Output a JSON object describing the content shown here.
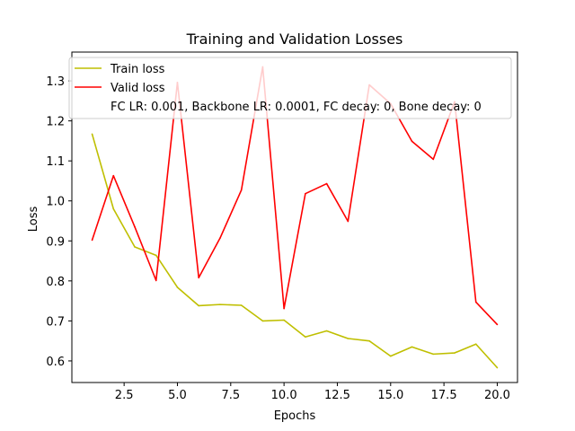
{
  "chart_data": {
    "type": "line",
    "title": "Training and Validation Losses",
    "xlabel": "Epochs",
    "ylabel": "Loss",
    "xlim": [
      0.05,
      20.95
    ],
    "ylim": [
      0.546,
      1.372
    ],
    "xticks": [
      2.5,
      5.0,
      7.5,
      10.0,
      12.5,
      15.0,
      17.5,
      20.0
    ],
    "xtick_labels": [
      "2.5",
      "5.0",
      "7.5",
      "10.0",
      "12.5",
      "15.0",
      "17.5",
      "20.0"
    ],
    "yticks": [
      0.6,
      0.7,
      0.8,
      0.9,
      1.0,
      1.1,
      1.2,
      1.3
    ],
    "ytick_labels": [
      "0.6",
      "0.7",
      "0.8",
      "0.9",
      "1.0",
      "1.1",
      "1.2",
      "1.3"
    ],
    "grid": false,
    "legend_position": "top-left",
    "x": [
      1,
      2,
      3,
      4,
      5,
      6,
      7,
      8,
      9,
      10,
      11,
      12,
      13,
      14,
      15,
      16,
      17,
      18,
      19,
      20
    ],
    "series": [
      {
        "name": "Train loss",
        "color": "#bfbf00",
        "values": [
          1.167,
          0.98,
          0.885,
          0.864,
          0.784,
          0.738,
          0.741,
          0.739,
          0.7,
          0.702,
          0.66,
          0.675,
          0.656,
          0.65,
          0.612,
          0.635,
          0.617,
          0.62,
          0.642,
          0.583
        ]
      },
      {
        "name": "Valid loss",
        "color": "#ff0000",
        "values": [
          0.902,
          1.063,
          0.935,
          0.801,
          1.296,
          0.808,
          0.907,
          1.027,
          1.335,
          0.731,
          1.018,
          1.043,
          0.949,
          1.29,
          1.243,
          1.149,
          1.104,
          1.248,
          0.747,
          0.691
        ]
      }
    ],
    "legend_note": "FC LR: 0.001, Backbone LR: 0.0001, FC decay: 0, Bone decay: 0"
  }
}
